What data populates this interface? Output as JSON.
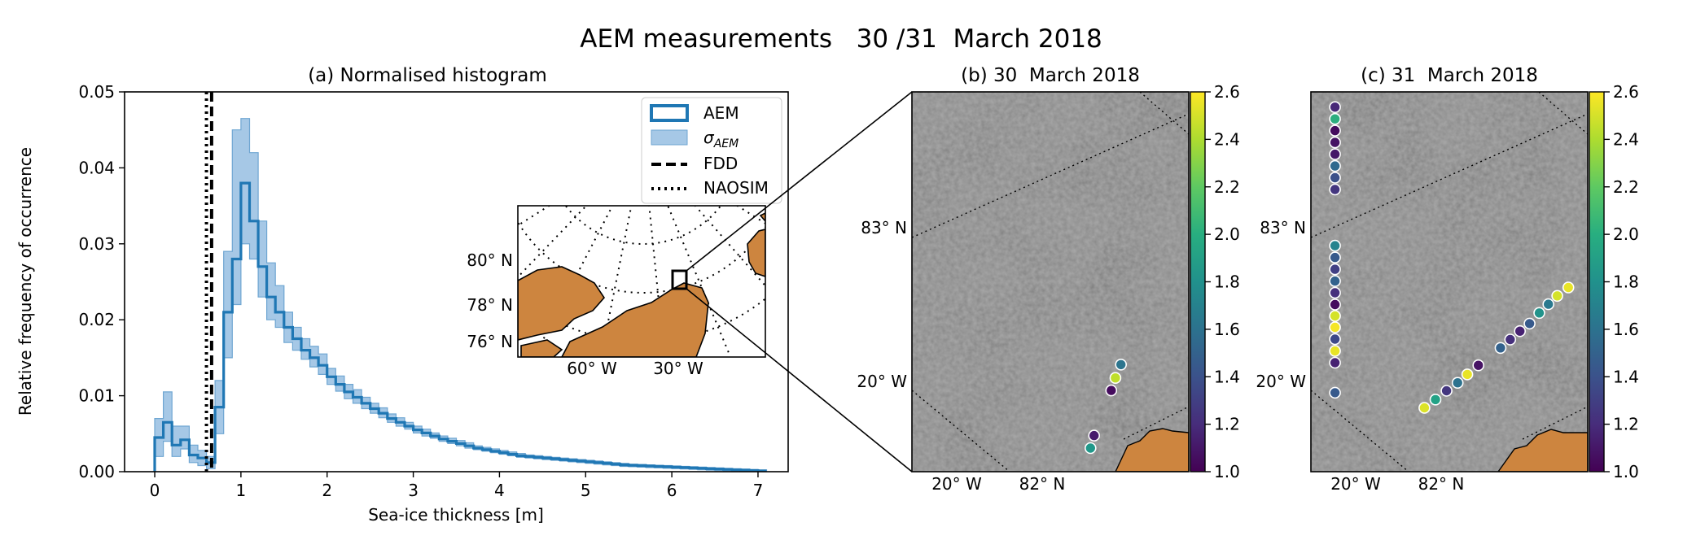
{
  "suptitle": "AEM measurements   30 /31  March 2018",
  "colors": {
    "aem": "#1f77b4",
    "sigma_fill": "#a6c8e6",
    "land": "#cd853f",
    "sea_ice_dark": "#2e2e2e",
    "sea_ice_light": "#8a8a8a"
  },
  "chart_data": [
    {
      "type": "line",
      "panel": "a",
      "title": "(a) Normalised histogram",
      "xlabel": "Sea-ice thickness [m]",
      "ylabel": "Relative frequency of occurrence",
      "xlim": [
        -0.35,
        7.35
      ],
      "ylim": [
        0,
        0.05
      ],
      "xticks": [
        "0",
        "1",
        "2",
        "3",
        "4",
        "5",
        "6",
        "7"
      ],
      "yticks": [
        "0.00",
        "0.01",
        "0.02",
        "0.03",
        "0.04",
        "0.05"
      ],
      "legend": {
        "position": "top-right",
        "entries": [
          "AEM",
          "σ_AEM",
          "FDD",
          "NAOSIM"
        ]
      },
      "series": [
        {
          "name": "AEM",
          "style": "step",
          "x": [
            0.0,
            0.1,
            0.2,
            0.3,
            0.4,
            0.5,
            0.6,
            0.7,
            0.8,
            0.9,
            1.0,
            1.1,
            1.2,
            1.3,
            1.4,
            1.5,
            1.6,
            1.7,
            1.8,
            1.9,
            2.0,
            2.1,
            2.2,
            2.3,
            2.4,
            2.5,
            2.6,
            2.7,
            2.8,
            2.9,
            3.0,
            3.1,
            3.2,
            3.3,
            3.4,
            3.5,
            3.6,
            3.7,
            3.8,
            3.9,
            4.0,
            4.1,
            4.2,
            4.3,
            4.4,
            4.5,
            4.6,
            4.7,
            4.8,
            4.9,
            5.0,
            5.1,
            5.2,
            5.3,
            5.4,
            5.5,
            5.6,
            5.7,
            5.8,
            5.9,
            6.0,
            6.1,
            6.2,
            6.3,
            6.4,
            6.5,
            6.6,
            6.7,
            6.8,
            6.9,
            7.0
          ],
          "y": [
            0.0045,
            0.0065,
            0.0035,
            0.0042,
            0.0022,
            0.0018,
            0.0012,
            0.0085,
            0.021,
            0.028,
            0.038,
            0.033,
            0.027,
            0.023,
            0.021,
            0.019,
            0.0175,
            0.016,
            0.015,
            0.014,
            0.0125,
            0.0115,
            0.0105,
            0.0098,
            0.009,
            0.0083,
            0.0077,
            0.007,
            0.0065,
            0.006,
            0.0055,
            0.0051,
            0.0047,
            0.0043,
            0.004,
            0.0037,
            0.0034,
            0.0031,
            0.0029,
            0.0027,
            0.0025,
            0.0023,
            0.0021,
            0.002,
            0.0019,
            0.0018,
            0.0017,
            0.0016,
            0.0015,
            0.0014,
            0.0013,
            0.0012,
            0.0011,
            0.001,
            0.0009,
            0.00085,
            0.0008,
            0.00075,
            0.0007,
            0.00065,
            0.0006,
            0.00055,
            0.0005,
            0.00045,
            0.0004,
            0.00035,
            0.0003,
            0.00025,
            0.0002,
            0.00015,
            0.0001
          ]
        },
        {
          "name": "σ_AEM",
          "style": "band",
          "x": [
            0.0,
            0.1,
            0.2,
            0.3,
            0.4,
            0.5,
            0.6,
            0.7,
            0.8,
            0.9,
            1.0,
            1.1,
            1.2,
            1.3,
            1.4,
            1.5,
            1.6,
            1.7,
            1.8,
            1.9,
            2.0,
            2.1,
            2.2,
            2.3,
            2.4,
            2.5,
            2.6,
            2.7,
            2.8,
            2.9,
            3.0,
            3.1,
            3.2,
            3.3,
            3.4,
            3.5,
            3.6,
            3.7,
            3.8,
            3.9,
            4.0,
            4.1,
            4.2,
            4.3,
            4.4,
            4.5,
            4.6,
            4.7,
            4.8,
            4.9,
            5.0,
            5.1,
            5.2,
            5.3,
            5.4,
            5.5,
            5.6,
            5.7,
            5.8,
            5.9,
            6.0,
            6.1,
            6.2,
            6.3,
            6.4,
            6.5,
            6.6,
            6.7,
            6.8,
            6.9,
            7.0
          ],
          "lower": [
            0.002,
            0.004,
            0.002,
            0.003,
            0.0012,
            0.0008,
            0.0004,
            0.005,
            0.015,
            0.022,
            0.03,
            0.028,
            0.023,
            0.02,
            0.019,
            0.017,
            0.016,
            0.0148,
            0.0138,
            0.0128,
            0.0115,
            0.0106,
            0.0096,
            0.009,
            0.0083,
            0.0077,
            0.0071,
            0.0065,
            0.006,
            0.0056,
            0.0051,
            0.0047,
            0.0044,
            0.004,
            0.0037,
            0.0034,
            0.0031,
            0.0029,
            0.0027,
            0.0025,
            0.0023,
            0.0021,
            0.0019,
            0.0018,
            0.0017,
            0.0016,
            0.0015,
            0.0014,
            0.0013,
            0.0012,
            0.0011,
            0.001,
            0.0009,
            0.0008,
            0.0007,
            0.00065,
            0.0006,
            0.00055,
            0.0005,
            0.00045,
            0.0004,
            0.00035,
            0.0003,
            0.00025,
            0.0002,
            0.00015,
            0.0001,
            5e-05,
            0.0,
            0.0,
            0.0
          ],
          "upper": [
            0.007,
            0.0105,
            0.006,
            0.006,
            0.0035,
            0.0028,
            0.002,
            0.012,
            0.029,
            0.045,
            0.0465,
            0.042,
            0.033,
            0.0275,
            0.0245,
            0.021,
            0.019,
            0.0175,
            0.0165,
            0.0155,
            0.0136,
            0.0126,
            0.0115,
            0.0108,
            0.0098,
            0.009,
            0.0084,
            0.0076,
            0.0071,
            0.0065,
            0.006,
            0.0056,
            0.0051,
            0.0047,
            0.0044,
            0.0041,
            0.0038,
            0.0034,
            0.0032,
            0.003,
            0.0028,
            0.0026,
            0.0024,
            0.0022,
            0.0021,
            0.002,
            0.0019,
            0.0018,
            0.0017,
            0.0016,
            0.0015,
            0.0014,
            0.0013,
            0.0012,
            0.0011,
            0.001,
            0.00095,
            0.0009,
            0.00085,
            0.0008,
            0.00075,
            0.0007,
            0.00065,
            0.0006,
            0.00055,
            0.0005,
            0.00045,
            0.0004,
            0.00035,
            0.0003,
            0.00025
          ]
        },
        {
          "name": "FDD",
          "style": "vline-dashed",
          "x": 0.66
        },
        {
          "name": "NAOSIM",
          "style": "vline-dotted",
          "x": 0.6
        }
      ],
      "inset": {
        "lat_labels": [
          "80° N",
          "78° N",
          "76° N"
        ],
        "lon_labels": [
          "60° W",
          "30° W"
        ]
      }
    },
    {
      "type": "scatter",
      "panel": "b",
      "title": "(b) 30  March 2018",
      "lon_label_left": "20° W",
      "lon_label_right": "82° N",
      "lat_labels": [
        "83° N",
        "20° W"
      ],
      "colorbar": {
        "range": [
          1.0,
          2.6
        ],
        "ticks": [
          "1.0",
          "1.2",
          "1.4",
          "1.6",
          "1.8",
          "2.0",
          "2.2",
          "2.4",
          "2.6"
        ]
      },
      "points": [
        {
          "u": 0.755,
          "v": 0.718,
          "value": 1.62
        },
        {
          "u": 0.735,
          "v": 0.753,
          "value": 2.45
        },
        {
          "u": 0.72,
          "v": 0.786,
          "value": 1.05
        },
        {
          "u": 0.658,
          "v": 0.905,
          "value": 1.12
        },
        {
          "u": 0.645,
          "v": 0.938,
          "value": 1.85
        }
      ]
    },
    {
      "type": "scatter",
      "panel": "c",
      "title": "(c) 31  March 2018",
      "lon_label_left": "20° W",
      "lon_label_right": "82° N",
      "lat_labels": [
        "83° N",
        "20° W"
      ],
      "colorbar": {
        "range": [
          1.0,
          2.6
        ],
        "ticks": [
          "1.0",
          "1.2",
          "1.4",
          "1.6",
          "1.8",
          "2.0",
          "2.2",
          "2.4",
          "2.6"
        ]
      },
      "points": [
        {
          "u": 0.087,
          "v": 0.04,
          "value": 1.18
        },
        {
          "u": 0.087,
          "v": 0.071,
          "value": 2.0
        },
        {
          "u": 0.087,
          "v": 0.102,
          "value": 1.05
        },
        {
          "u": 0.087,
          "v": 0.133,
          "value": 1.08
        },
        {
          "u": 0.087,
          "v": 0.164,
          "value": 1.1
        },
        {
          "u": 0.087,
          "v": 0.195,
          "value": 1.55
        },
        {
          "u": 0.087,
          "v": 0.226,
          "value": 1.4
        },
        {
          "u": 0.087,
          "v": 0.257,
          "value": 1.25
        },
        {
          "u": 0.087,
          "v": 0.405,
          "value": 1.72
        },
        {
          "u": 0.087,
          "v": 0.436,
          "value": 1.45
        },
        {
          "u": 0.087,
          "v": 0.467,
          "value": 1.3
        },
        {
          "u": 0.087,
          "v": 0.498,
          "value": 1.5
        },
        {
          "u": 0.087,
          "v": 0.529,
          "value": 1.22
        },
        {
          "u": 0.087,
          "v": 0.56,
          "value": 1.05
        },
        {
          "u": 0.087,
          "v": 0.59,
          "value": 2.5
        },
        {
          "u": 0.087,
          "v": 0.62,
          "value": 2.58
        },
        {
          "u": 0.087,
          "v": 0.651,
          "value": 1.35
        },
        {
          "u": 0.087,
          "v": 0.682,
          "value": 2.55
        },
        {
          "u": 0.087,
          "v": 0.713,
          "value": 1.15
        },
        {
          "u": 0.087,
          "v": 0.792,
          "value": 1.45
        },
        {
          "u": 0.93,
          "v": 0.515,
          "value": 2.55
        },
        {
          "u": 0.89,
          "v": 0.537,
          "value": 2.5
        },
        {
          "u": 0.858,
          "v": 0.559,
          "value": 1.65
        },
        {
          "u": 0.825,
          "v": 0.582,
          "value": 1.82
        },
        {
          "u": 0.79,
          "v": 0.61,
          "value": 1.45
        },
        {
          "u": 0.755,
          "v": 0.63,
          "value": 1.15
        },
        {
          "u": 0.72,
          "v": 0.652,
          "value": 1.22
        },
        {
          "u": 0.685,
          "v": 0.674,
          "value": 1.5
        },
        {
          "u": 0.605,
          "v": 0.72,
          "value": 1.08
        },
        {
          "u": 0.565,
          "v": 0.744,
          "value": 2.55
        },
        {
          "u": 0.53,
          "v": 0.766,
          "value": 1.6
        },
        {
          "u": 0.49,
          "v": 0.787,
          "value": 1.25
        },
        {
          "u": 0.45,
          "v": 0.81,
          "value": 1.92
        },
        {
          "u": 0.41,
          "v": 0.832,
          "value": 2.52
        }
      ]
    }
  ]
}
